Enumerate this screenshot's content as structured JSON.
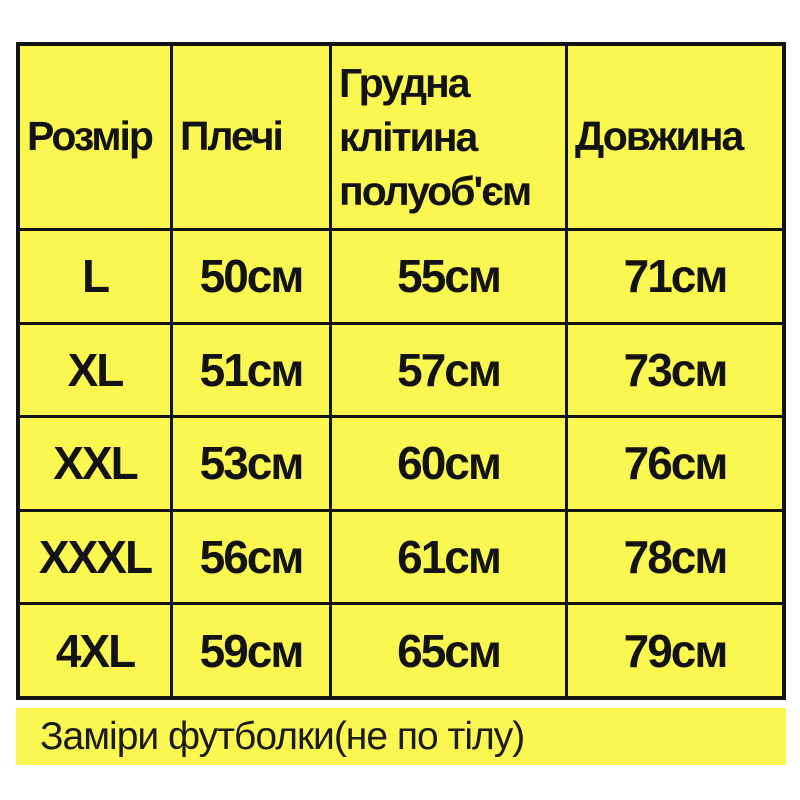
{
  "colors": {
    "page_background": "#ffffff",
    "cell_yellow": "#fbf751",
    "grid_line_black": "#131313",
    "text_dark": "#131313"
  },
  "chart_data": {
    "type": "table",
    "title": "",
    "columns": [
      "Розмір",
      "Плечі",
      "Грудна клітина полуоб'єм",
      "Довжина"
    ],
    "rows": [
      [
        "L",
        "50см",
        "55см",
        "71см"
      ],
      [
        "XL",
        "51см",
        "57см",
        "73см"
      ],
      [
        "XXL",
        "53см",
        "60см",
        "76см"
      ],
      [
        "XXXL",
        "56см",
        "61см",
        "78см"
      ],
      [
        "4XL",
        "59см",
        "65см",
        "79см"
      ]
    ],
    "caption": "Заміри футболки(не по тілу)",
    "measurements_cm": {
      "sizes": [
        "L",
        "XL",
        "XXL",
        "XXXL",
        "4XL"
      ],
      "shoulders": [
        50,
        51,
        53,
        56,
        59
      ],
      "chest_half_volume": [
        55,
        57,
        60,
        61,
        65
      ],
      "length": [
        71,
        73,
        76,
        78,
        79
      ]
    }
  }
}
